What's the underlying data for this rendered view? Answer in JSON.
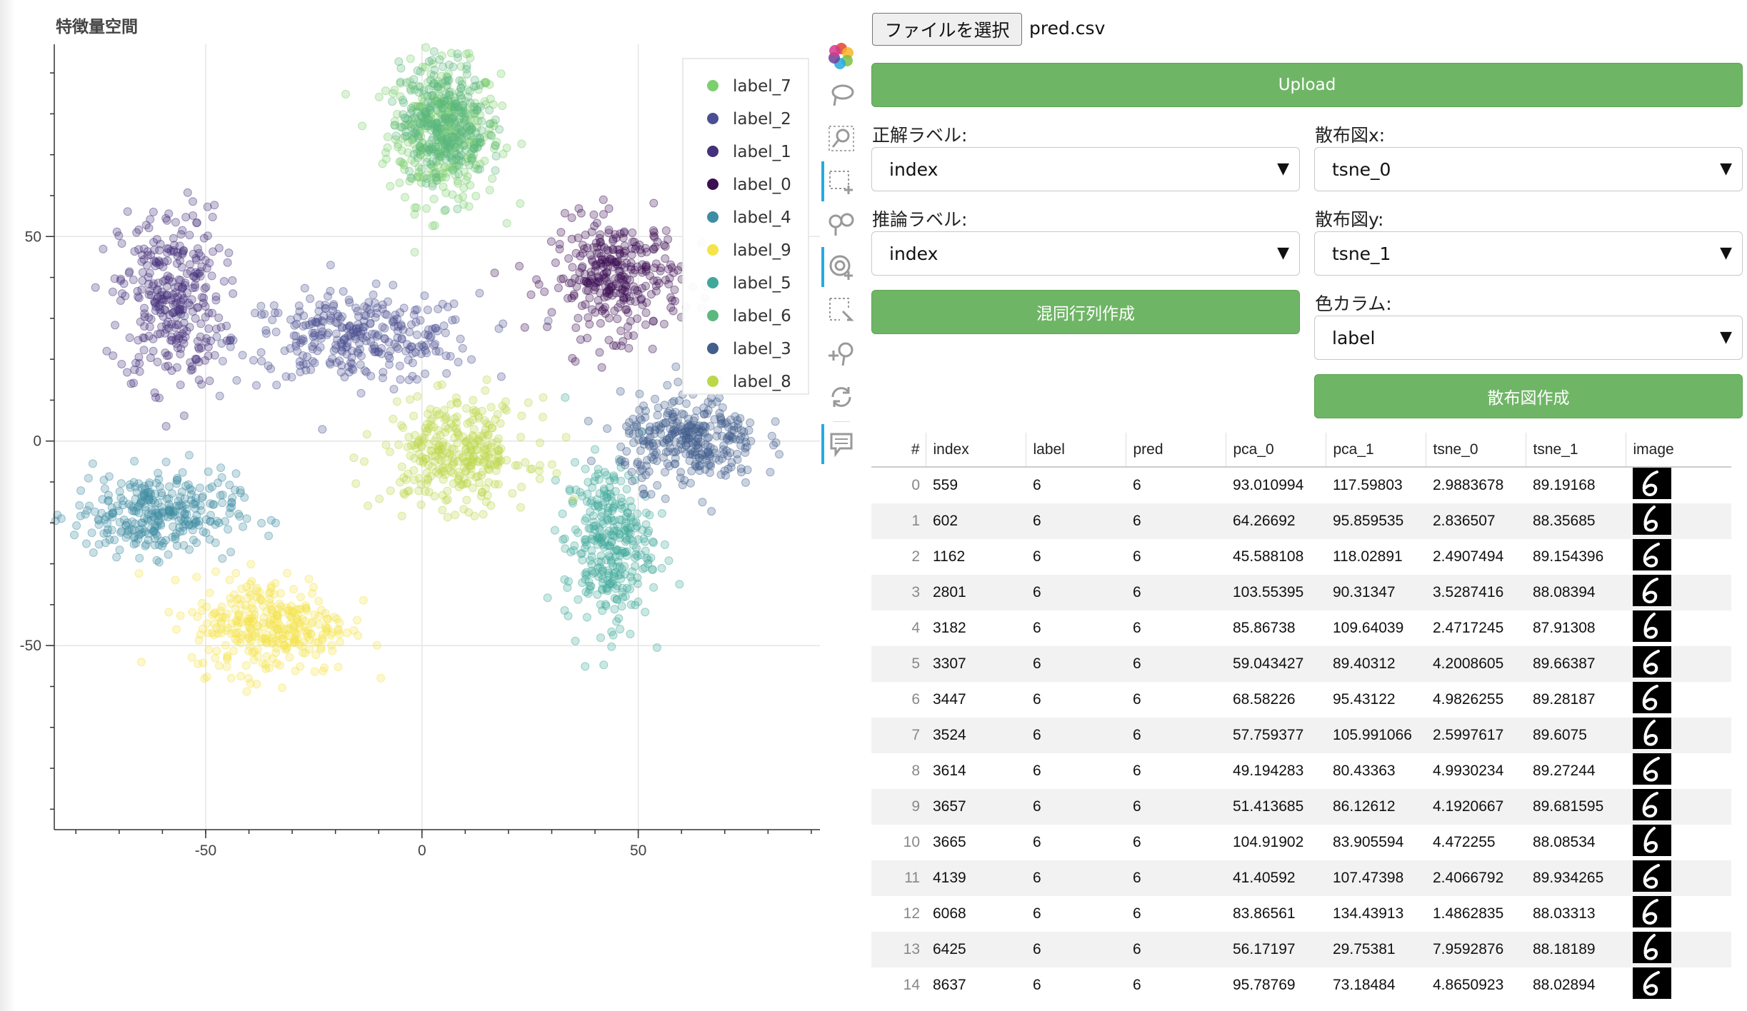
{
  "plot": {
    "title": "特徴量空間",
    "xticks": [
      -50,
      0,
      50
    ],
    "yticks": [
      50,
      0,
      -50
    ],
    "legend": [
      "label_7",
      "label_2",
      "label_1",
      "label_0",
      "label_4",
      "label_9",
      "label_5",
      "label_6",
      "label_3",
      "label_8"
    ]
  },
  "chart_data": {
    "type": "scatter",
    "title": "特徴量空間",
    "xlabel": "",
    "ylabel": "",
    "xlim": [
      -85,
      92
    ],
    "ylim": [
      -95,
      97
    ],
    "grid": true,
    "legend_position": "top-right",
    "series": [
      {
        "name": "label_7",
        "color": "#7ccf6f",
        "cluster_center": [
          5,
          75
        ],
        "spread": [
          13,
          17
        ]
      },
      {
        "name": "label_2",
        "color": "#4a4f91",
        "cluster_center": [
          -15,
          25
        ],
        "spread": [
          28,
          11
        ]
      },
      {
        "name": "label_1",
        "color": "#45307a",
        "cluster_center": [
          -58,
          35
        ],
        "spread": [
          12,
          22
        ]
      },
      {
        "name": "label_0",
        "color": "#3c0f54",
        "cluster_center": [
          45,
          40
        ],
        "spread": [
          15,
          14
        ]
      },
      {
        "name": "label_4",
        "color": "#3f8da3",
        "cluster_center": [
          -62,
          -18
        ],
        "spread": [
          19,
          10
        ]
      },
      {
        "name": "label_9",
        "color": "#f4e44a",
        "cluster_center": [
          -35,
          -45
        ],
        "spread": [
          18,
          12
        ]
      },
      {
        "name": "label_5",
        "color": "#3fa89a",
        "cluster_center": [
          43,
          -25
        ],
        "spread": [
          10,
          20
        ]
      },
      {
        "name": "label_6",
        "color": "#5cb87e",
        "cluster_center": [
          5,
          78
        ],
        "spread": [
          10,
          14
        ]
      },
      {
        "name": "label_3",
        "color": "#415e8c",
        "cluster_center": [
          62,
          0
        ],
        "spread": [
          16,
          11
        ]
      },
      {
        "name": "label_8",
        "color": "#bcd74a",
        "cluster_center": [
          8,
          -3
        ],
        "spread": [
          17,
          13
        ]
      }
    ]
  },
  "toolbar": {
    "icons": [
      "bokeh-logo-icon",
      "lasso-select-icon",
      "zoom-icon",
      "box-select-icon",
      "pan-icon",
      "wheel-zoom-icon",
      "poly-select-icon",
      "zoom-in-icon",
      "reset-icon",
      "hover-icon"
    ]
  },
  "upload": {
    "file_button_label": "ファイルを選択",
    "file_name": "pred.csv",
    "upload_label": "Upload"
  },
  "form": {
    "true_label": "正解ラベル:",
    "true_value": "index",
    "pred_label": "推論ラベル:",
    "pred_value": "index",
    "confusion_button": "混同行列作成",
    "scatter_x_label": "散布図x:",
    "scatter_x_value": "tsne_0",
    "scatter_y_label": "散布図y:",
    "scatter_y_value": "tsne_1",
    "color_label": "色カラム:",
    "color_value": "label",
    "scatter_button": "散布図作成"
  },
  "table": {
    "columns": [
      "#",
      "index",
      "label",
      "pred",
      "pca_0",
      "pca_1",
      "tsne_0",
      "tsne_1",
      "image"
    ],
    "rows": [
      [
        "0",
        "559",
        "6",
        "6",
        "93.010994",
        "117.59803",
        "2.9883678",
        "89.19168"
      ],
      [
        "1",
        "602",
        "6",
        "6",
        "64.26692",
        "95.859535",
        "2.836507",
        "88.35685"
      ],
      [
        "2",
        "1162",
        "6",
        "6",
        "45.588108",
        "118.02891",
        "2.4907494",
        "89.154396"
      ],
      [
        "3",
        "2801",
        "6",
        "6",
        "103.55395",
        "90.31347",
        "3.5287416",
        "88.08394"
      ],
      [
        "4",
        "3182",
        "6",
        "6",
        "85.86738",
        "109.64039",
        "2.4717245",
        "87.91308"
      ],
      [
        "5",
        "3307",
        "6",
        "6",
        "59.043427",
        "89.40312",
        "4.2008605",
        "89.66387"
      ],
      [
        "6",
        "3447",
        "6",
        "6",
        "68.58226",
        "95.43122",
        "4.9826255",
        "89.28187"
      ],
      [
        "7",
        "3524",
        "6",
        "6",
        "57.759377",
        "105.991066",
        "2.5997617",
        "89.6075"
      ],
      [
        "8",
        "3614",
        "6",
        "6",
        "49.194283",
        "80.43363",
        "4.9930234",
        "89.27244"
      ],
      [
        "9",
        "3657",
        "6",
        "6",
        "51.413685",
        "86.12612",
        "4.1920667",
        "89.681595"
      ],
      [
        "10",
        "3665",
        "6",
        "6",
        "104.91902",
        "83.905594",
        "4.472255",
        "88.08534"
      ],
      [
        "11",
        "4139",
        "6",
        "6",
        "41.40592",
        "107.47398",
        "2.4066792",
        "89.934265"
      ],
      [
        "12",
        "6068",
        "6",
        "6",
        "83.86561",
        "134.43913",
        "1.4862835",
        "88.03313"
      ],
      [
        "13",
        "6425",
        "6",
        "6",
        "56.17197",
        "29.75381",
        "7.9592876",
        "88.18189"
      ],
      [
        "14",
        "8637",
        "6",
        "6",
        "95.78769",
        "73.18484",
        "4.8650923",
        "88.02894"
      ]
    ]
  }
}
